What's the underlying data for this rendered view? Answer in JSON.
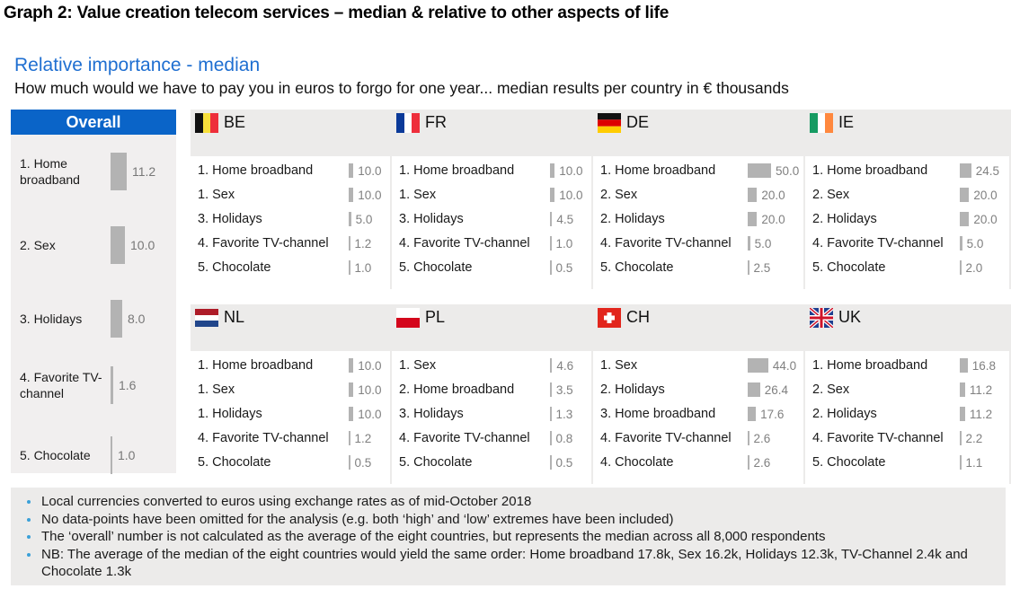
{
  "header": {
    "graph_title": "Graph 2: Value creation telecom services – median & relative to other aspects of life",
    "subtitle": "Relative importance - median",
    "description": "How much would we have to pay you in euros to forgo for one year... median results per country in € thousands"
  },
  "overall": {
    "title": "Overall",
    "items": [
      {
        "label": "1. Home broadband",
        "value": 11.2,
        "value_text": "11.2"
      },
      {
        "label": "2. Sex",
        "value": 10.0,
        "value_text": "10.0"
      },
      {
        "label": "3. Holidays",
        "value": 8.0,
        "value_text": "8.0"
      },
      {
        "label": "4. Favorite TV-channel",
        "value": 1.6,
        "value_text": "1.6"
      },
      {
        "label": "5. Chocolate",
        "value": 1.0,
        "value_text": "1.0"
      }
    ]
  },
  "countries": [
    {
      "code": "BE",
      "flag": "belgium-flag-icon",
      "items": [
        {
          "label": "1. Home broadband",
          "value": 10.0,
          "value_text": "10.0"
        },
        {
          "label": "1. Sex",
          "value": 10.0,
          "value_text": "10.0"
        },
        {
          "label": "3. Holidays",
          "value": 5.0,
          "value_text": "5.0"
        },
        {
          "label": "4. Favorite TV-channel",
          "value": 1.2,
          "value_text": "1.2"
        },
        {
          "label": "5. Chocolate",
          "value": 1.0,
          "value_text": "1.0"
        }
      ]
    },
    {
      "code": "FR",
      "flag": "france-flag-icon",
      "items": [
        {
          "label": "1. Home broadband",
          "value": 10.0,
          "value_text": "10.0"
        },
        {
          "label": "1. Sex",
          "value": 10.0,
          "value_text": "10.0"
        },
        {
          "label": "3. Holidays",
          "value": 4.5,
          "value_text": "4.5"
        },
        {
          "label": "4. Favorite TV-channel",
          "value": 1.0,
          "value_text": "1.0"
        },
        {
          "label": "5. Chocolate",
          "value": 0.5,
          "value_text": "0.5"
        }
      ]
    },
    {
      "code": "DE",
      "flag": "germany-flag-icon",
      "items": [
        {
          "label": "1. Home broadband",
          "value": 50.0,
          "value_text": "50.0"
        },
        {
          "label": "2. Sex",
          "value": 20.0,
          "value_text": "20.0"
        },
        {
          "label": "2. Holidays",
          "value": 20.0,
          "value_text": "20.0"
        },
        {
          "label": "4. Favorite TV-channel",
          "value": 5.0,
          "value_text": "5.0"
        },
        {
          "label": "5. Chocolate",
          "value": 2.5,
          "value_text": "2.5"
        }
      ]
    },
    {
      "code": "IE",
      "flag": "ireland-flag-icon",
      "items": [
        {
          "label": "1. Home broadband",
          "value": 24.5,
          "value_text": "24.5"
        },
        {
          "label": "2. Sex",
          "value": 20.0,
          "value_text": "20.0"
        },
        {
          "label": "2. Holidays",
          "value": 20.0,
          "value_text": "20.0"
        },
        {
          "label": "4. Favorite TV-channel",
          "value": 5.0,
          "value_text": "5.0"
        },
        {
          "label": "5. Chocolate",
          "value": 2.0,
          "value_text": "2.0"
        }
      ]
    },
    {
      "code": "NL",
      "flag": "netherlands-flag-icon",
      "items": [
        {
          "label": "1. Home broadband",
          "value": 10.0,
          "value_text": "10.0"
        },
        {
          "label": "1. Sex",
          "value": 10.0,
          "value_text": "10.0"
        },
        {
          "label": "1. Holidays",
          "value": 10.0,
          "value_text": "10.0"
        },
        {
          "label": "4. Favorite TV-channel",
          "value": 1.2,
          "value_text": "1.2"
        },
        {
          "label": "5. Chocolate",
          "value": 0.5,
          "value_text": "0.5"
        }
      ]
    },
    {
      "code": "PL",
      "flag": "poland-flag-icon",
      "items": [
        {
          "label": "1.  Sex",
          "value": 4.6,
          "value_text": "4.6"
        },
        {
          "label": "2. Home broadband",
          "value": 3.5,
          "value_text": "3.5"
        },
        {
          "label": "3. Holidays",
          "value": 1.3,
          "value_text": "1.3"
        },
        {
          "label": "4. Favorite TV-channel",
          "value": 0.8,
          "value_text": "0.8"
        },
        {
          "label": "5. Chocolate",
          "value": 0.5,
          "value_text": "0.5"
        }
      ]
    },
    {
      "code": "CH",
      "flag": "switzerland-flag-icon",
      "items": [
        {
          "label": "1.  Sex",
          "value": 44.0,
          "value_text": "44.0"
        },
        {
          "label": "2. Holidays",
          "value": 26.4,
          "value_text": "26.4"
        },
        {
          "label": "3. Home broadband",
          "value": 17.6,
          "value_text": "17.6"
        },
        {
          "label": "4. Favorite TV-channel",
          "value": 2.6,
          "value_text": "2.6"
        },
        {
          "label": "4. Chocolate",
          "value": 2.6,
          "value_text": "2.6"
        }
      ]
    },
    {
      "code": "UK",
      "flag": "uk-flag-icon",
      "items": [
        {
          "label": "1. Home broadband",
          "value": 16.8,
          "value_text": "16.8"
        },
        {
          "label": "2. Sex",
          "value": 11.2,
          "value_text": "11.2"
        },
        {
          "label": "2. Holidays",
          "value": 11.2,
          "value_text": "11.2"
        },
        {
          "label": "4. Favorite TV-channel",
          "value": 2.2,
          "value_text": "2.2"
        },
        {
          "label": "5. Chocolate",
          "value": 1.1,
          "value_text": "1.1"
        }
      ]
    }
  ],
  "notes": [
    "Local currencies converted to euros using exchange rates as of mid-October 2018",
    "No data-points have been omitted for the analysis (e.g. both ‘high’ and ‘low’ extremes have been included)",
    "The ‘overall’ number is not calculated as the average of the eight countries, but represents the median across all 8,000 respondents",
    "NB: The average of the median of the eight countries would yield the same order: Home broadband 17.8k, Sex 16.2k, Holidays 12.3k, TV-Channel 2.4k and Chocolate 1.3k"
  ],
  "colors": {
    "accent_blue": "#0a64c8",
    "subtitle_blue": "#1f6fd1",
    "bar_gray": "#b3b3b3",
    "bullet_blue": "#3aa0d8"
  },
  "chart_data": {
    "type": "bar",
    "title": "Relative importance - median",
    "subtitle": "How much would we have to pay you in euros to forgo for one year... median results per country in € thousands",
    "unit": "€ thousands",
    "categories": [
      "Home broadband",
      "Sex",
      "Holidays",
      "Favorite TV-channel",
      "Chocolate"
    ],
    "series": [
      {
        "name": "Overall",
        "values": [
          11.2,
          10.0,
          8.0,
          1.6,
          1.0
        ]
      },
      {
        "name": "BE",
        "values": [
          10.0,
          10.0,
          5.0,
          1.2,
          1.0
        ]
      },
      {
        "name": "FR",
        "values": [
          10.0,
          10.0,
          4.5,
          1.0,
          0.5
        ]
      },
      {
        "name": "DE",
        "values": [
          50.0,
          20.0,
          20.0,
          5.0,
          2.5
        ]
      },
      {
        "name": "IE",
        "values": [
          24.5,
          20.0,
          20.0,
          5.0,
          2.0
        ]
      },
      {
        "name": "NL",
        "values": [
          10.0,
          10.0,
          10.0,
          1.2,
          0.5
        ]
      },
      {
        "name": "PL",
        "values": [
          3.5,
          4.6,
          1.3,
          0.8,
          0.5
        ]
      },
      {
        "name": "CH",
        "values": [
          17.6,
          44.0,
          26.4,
          2.6,
          2.6
        ]
      },
      {
        "name": "UK",
        "values": [
          16.8,
          11.2,
          11.2,
          2.2,
          1.1
        ]
      }
    ],
    "xlabel": "",
    "ylabel": "€ thousands"
  }
}
